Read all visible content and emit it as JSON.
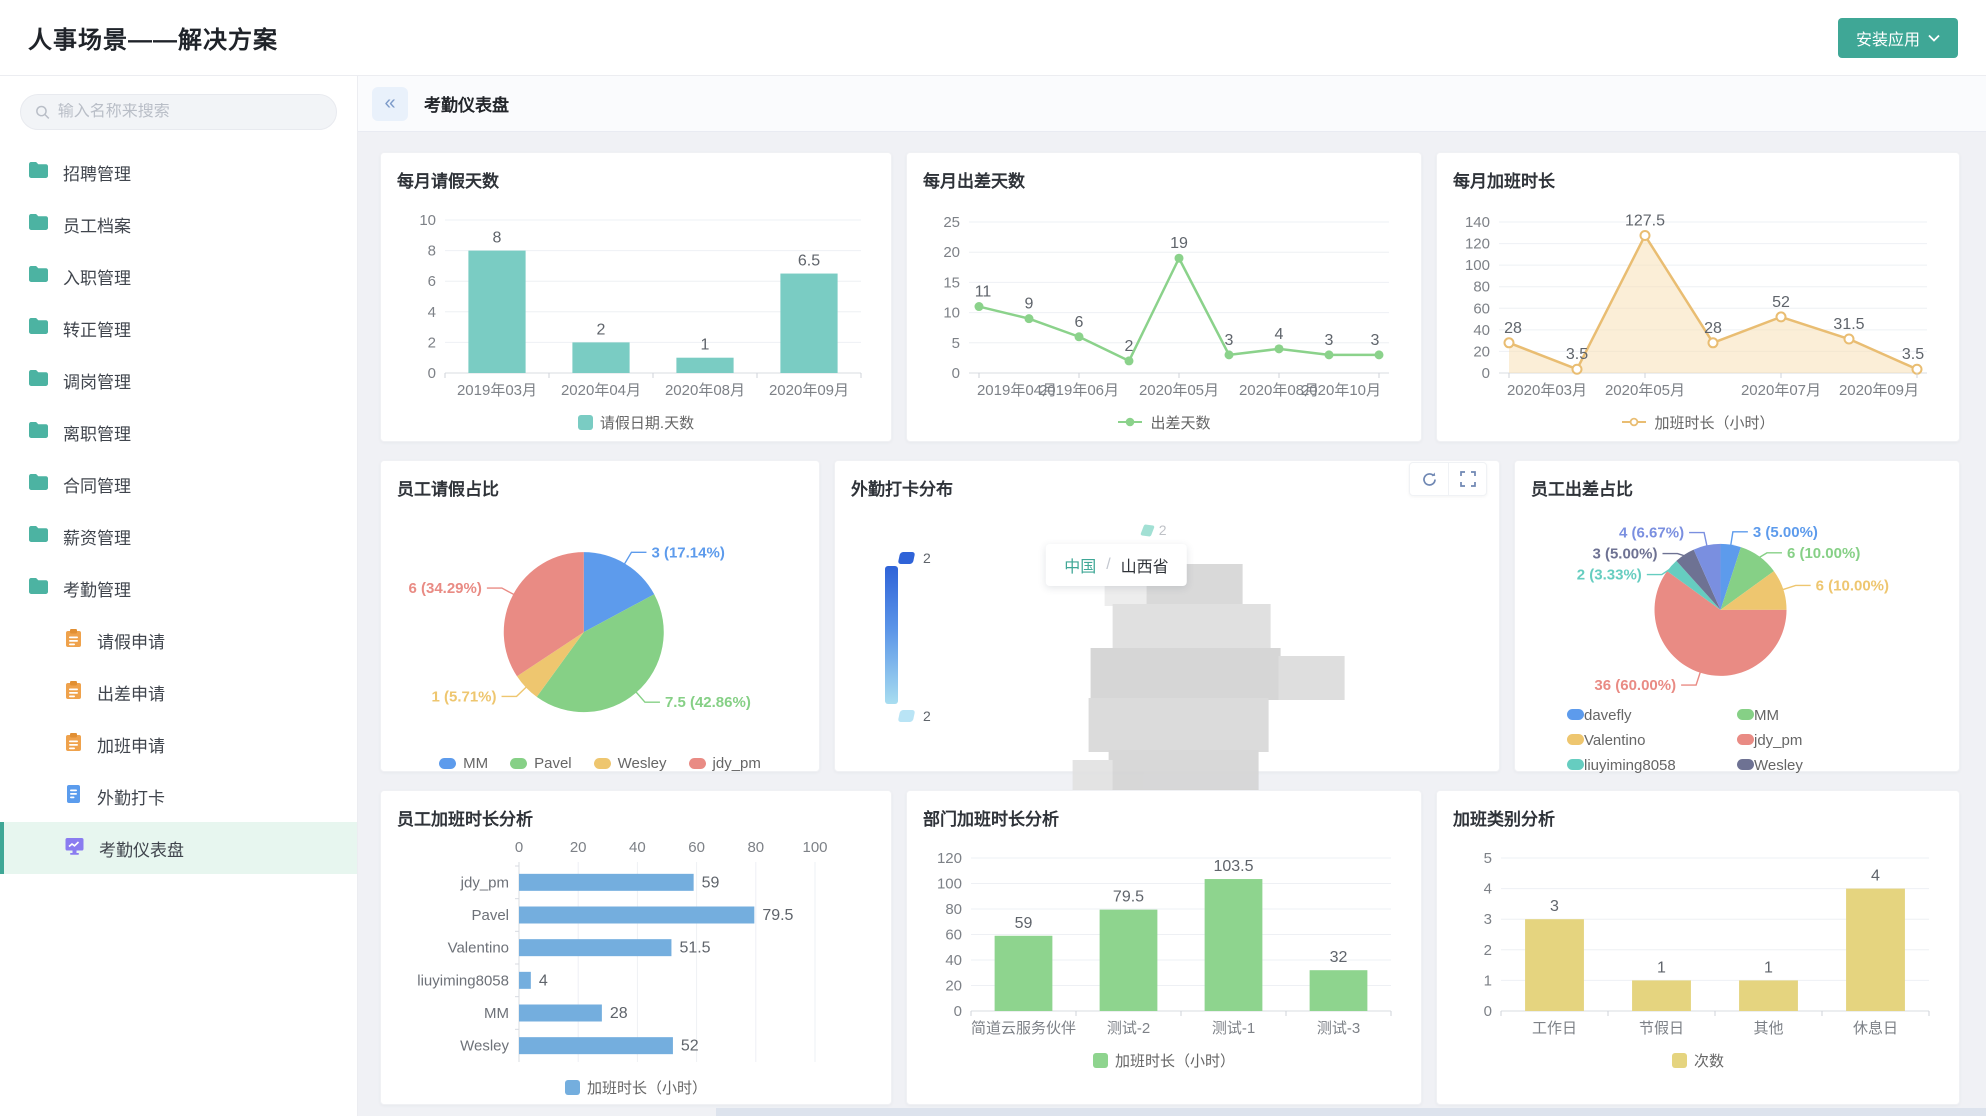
{
  "app": {
    "title": "人事场景——解决方案",
    "install_button": "安装应用"
  },
  "sidebar": {
    "search_placeholder": "输入名称来搜索",
    "folders": [
      "招聘管理",
      "员工档案",
      "入职管理",
      "转正管理",
      "调岗管理",
      "离职管理",
      "合同管理",
      "薪资管理",
      "考勤管理"
    ],
    "sub_items": [
      {
        "label": "请假申请",
        "icon": "clipboard-icon"
      },
      {
        "label": "出差申请",
        "icon": "clipboard-icon"
      },
      {
        "label": "加班申请",
        "icon": "clipboard-icon"
      },
      {
        "label": "外勤打卡",
        "icon": "document-icon"
      },
      {
        "label": "考勤仪表盘",
        "icon": "dashboard-icon",
        "active": true
      }
    ]
  },
  "header": {
    "title": "考勤仪表盘"
  },
  "colors": {
    "accent": "#3fa796",
    "teal_bar": "#7accc3",
    "green_line": "#8bd28b",
    "orange_line": "#e9bd72",
    "blue_bar": "#74aede",
    "green_bar": "#8ed48e",
    "khaki_bar": "#e5d47f"
  },
  "chart_data": [
    {
      "id": "monthly-leave",
      "type": "bar",
      "title": "每月请假天数",
      "categories": [
        "2019年03月",
        "2020年04月",
        "2020年08月",
        "2020年09月"
      ],
      "values": [
        8,
        2,
        1,
        6.5
      ],
      "ylim": [
        0,
        10
      ],
      "yticks": [
        0,
        2,
        4,
        6,
        8,
        10
      ],
      "legend": "请假日期.天数",
      "color": "#7accc3"
    },
    {
      "id": "monthly-trip",
      "type": "line",
      "title": "每月出差天数",
      "values": [
        11,
        9,
        6,
        2,
        19,
        3,
        4,
        3,
        3
      ],
      "xticks": [
        "2019年04月",
        "2019年06月",
        "2020年05月",
        "2020年08月",
        "2020年10月"
      ],
      "ylim": [
        0,
        25
      ],
      "yticks": [
        0,
        5,
        10,
        15,
        20,
        25
      ],
      "legend": "出差天数",
      "color": "#8bd28b"
    },
    {
      "id": "monthly-overtime",
      "type": "area",
      "title": "每月加班时长",
      "values": [
        28,
        3.5,
        127.5,
        28,
        52,
        31.5,
        3.5
      ],
      "xticks": [
        "2020年03月",
        "2020年05月",
        "2020年07月",
        "2020年09月"
      ],
      "ylim": [
        0,
        140
      ],
      "yticks": [
        0,
        20,
        40,
        60,
        80,
        100,
        120,
        140
      ],
      "legend": "加班时长（小时）",
      "color": "#e9bd72",
      "fill": "rgba(247,224,183,0.55)"
    },
    {
      "id": "leave-pie",
      "type": "pie",
      "title": "员工请假占比",
      "slices": [
        {
          "name": "MM",
          "value": 3,
          "pct": "17.14%",
          "color": "#5d9bec"
        },
        {
          "name": "Pavel",
          "value": 7.5,
          "pct": "42.86%",
          "color": "#86d086"
        },
        {
          "name": "Wesley",
          "value": 1,
          "pct": "5.71%",
          "color": "#eec66f"
        },
        {
          "name": "jdy_pm",
          "value": 6,
          "pct": "34.29%",
          "color": "#e98b84"
        }
      ],
      "legend_cols": 1
    },
    {
      "id": "field-clockin-map",
      "type": "map",
      "title": "外勤打卡分布",
      "breadcrumb": {
        "root": "中国",
        "sep": "/",
        "current": "山西省"
      },
      "legend_top": "2",
      "legend_bottom": "2",
      "marker_value": "2"
    },
    {
      "id": "trip-pie",
      "type": "pie",
      "title": "员工出差占比",
      "slices": [
        {
          "name": "davefly",
          "value": 3,
          "pct": "5.00%",
          "color": "#5d9bec"
        },
        {
          "name": "MM",
          "value": 6,
          "pct": "10.00%",
          "color": "#86d086"
        },
        {
          "name": "Valentino",
          "value": 6,
          "pct": "10.00%",
          "color": "#eec66f"
        },
        {
          "name": "jdy_pm",
          "value": 36,
          "pct": "60.00%",
          "color": "#e98b84"
        },
        {
          "name": "liuyiming8058",
          "value": 2,
          "pct": "3.33%",
          "color": "#66cdc0"
        },
        {
          "name": "Wesley",
          "value": 3,
          "pct": "5.00%",
          "color": "#6e7293"
        },
        {
          "name": "",
          "value": 4,
          "pct": "6.67%",
          "color": "#7a8fe0"
        }
      ],
      "legend_cols": 2
    },
    {
      "id": "employee-overtime",
      "type": "hbar",
      "title": "员工加班时长分析",
      "categories": [
        "jdy_pm",
        "Pavel",
        "Valentino",
        "liuyiming8058",
        "MM",
        "Wesley"
      ],
      "values": [
        59,
        79.5,
        51.5,
        4,
        28,
        52
      ],
      "xlim": [
        0,
        100
      ],
      "xticks": [
        0,
        20,
        40,
        60,
        80,
        100
      ],
      "legend": "加班时长（小时）",
      "color": "#74aede"
    },
    {
      "id": "dept-overtime",
      "type": "bar",
      "title": "部门加班时长分析",
      "categories": [
        "简道云服务伙伴",
        "测试-2",
        "测试-1",
        "测试-3"
      ],
      "values": [
        59,
        79.5,
        103.5,
        32
      ],
      "ylim": [
        0,
        120
      ],
      "yticks": [
        0,
        20,
        40,
        60,
        80,
        100,
        120
      ],
      "legend": "加班时长（小时）",
      "color": "#8ed48e"
    },
    {
      "id": "overtime-category",
      "type": "bar",
      "title": "加班类别分析",
      "categories": [
        "工作日",
        "节假日",
        "其他",
        "休息日"
      ],
      "values": [
        3,
        1,
        1,
        4
      ],
      "ylim": [
        0,
        5
      ],
      "yticks": [
        0,
        1,
        2,
        3,
        4,
        5
      ],
      "legend": "次数",
      "color": "#e5d47f"
    }
  ]
}
